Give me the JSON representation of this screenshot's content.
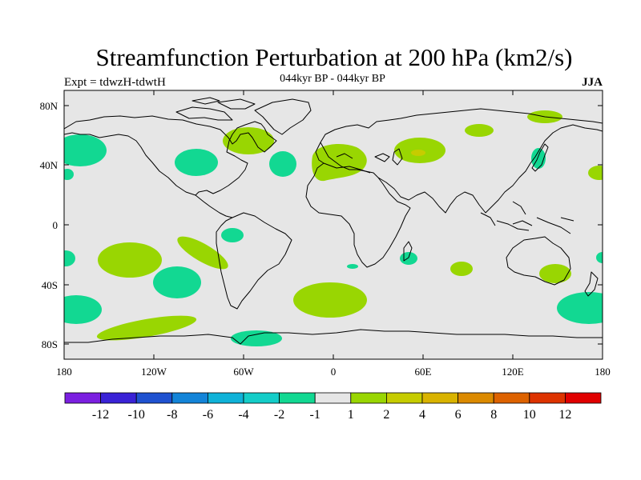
{
  "title": "Streamfunction Perturbation at 200 hPa (km2/s)",
  "experiment": "Expt = tdwzH-tdwtH",
  "period": "044kyr BP - 044kyr BP",
  "season": "JJA",
  "y_axis_labels": [
    "80N",
    "40N",
    "0",
    "40S",
    "80S"
  ],
  "x_axis_labels": [
    "180",
    "120W",
    "60W",
    "0",
    "60E",
    "120E",
    "180"
  ],
  "colorbar": {
    "labels": [
      "-12",
      "-10",
      "-8",
      "-6",
      "-4",
      "-2",
      "-1",
      "1",
      "2",
      "4",
      "6",
      "8",
      "10",
      "12"
    ],
    "colors": [
      "#7b1fe0",
      "#3a22d6",
      "#1f52d0",
      "#1384d8",
      "#0fb2d8",
      "#14cdc8",
      "#12d892",
      "#e6e6e6",
      "#99d602",
      "#c6cc00",
      "#d9b300",
      "#db8a00",
      "#dd6200",
      "#dd3300",
      "#e00000"
    ]
  },
  "map": {
    "background_color": "#e6e6e6",
    "lon_range": [
      -180,
      180
    ],
    "lat_range": [
      -90,
      90
    ],
    "regions": [
      {
        "name": "North Pacific west",
        "value": -2,
        "color": "#12d892"
      },
      {
        "name": "North Pacific central-east",
        "value": -2,
        "color": "#12d892"
      },
      {
        "name": "Hudson Bay",
        "value": 2,
        "color": "#99d602"
      },
      {
        "name": "North Atlantic",
        "value": -2,
        "color": "#12d892"
      },
      {
        "name": "Western Europe",
        "value": 2,
        "color": "#99d602"
      },
      {
        "name": "Central Asia",
        "value": 2,
        "color": "#99d602"
      },
      {
        "name": "Arctic Siberia",
        "value": 2,
        "color": "#99d602"
      },
      {
        "name": "Japan",
        "value": -2,
        "color": "#12d892"
      },
      {
        "name": "Dateline 40N",
        "value": 2,
        "color": "#99d602"
      },
      {
        "name": "South Pacific band",
        "value": 2,
        "color": "#99d602"
      },
      {
        "name": "Southeast Pacific band",
        "value": 2,
        "color": "#99d602"
      },
      {
        "name": "Southern Ocean 150W",
        "value": 2,
        "color": "#99d602"
      },
      {
        "name": "South Atlantic",
        "value": 2,
        "color": "#99d602"
      },
      {
        "name": "South America coast",
        "value": -2,
        "color": "#12d892"
      },
      {
        "name": "Southeast Pacific",
        "value": -2,
        "color": "#12d892"
      },
      {
        "name": "Drake Passage",
        "value": -2,
        "color": "#12d892"
      },
      {
        "name": "Madagascar",
        "value": -2,
        "color": "#12d892"
      },
      {
        "name": "Indian Ocean",
        "value": 2,
        "color": "#99d602"
      },
      {
        "name": "Southern Australia",
        "value": 2,
        "color": "#99d602"
      },
      {
        "name": "Southwest Pacific",
        "value": -2,
        "color": "#12d892"
      },
      {
        "name": "Southeast Pacific 60S",
        "value": -2,
        "color": "#12d892"
      }
    ]
  }
}
